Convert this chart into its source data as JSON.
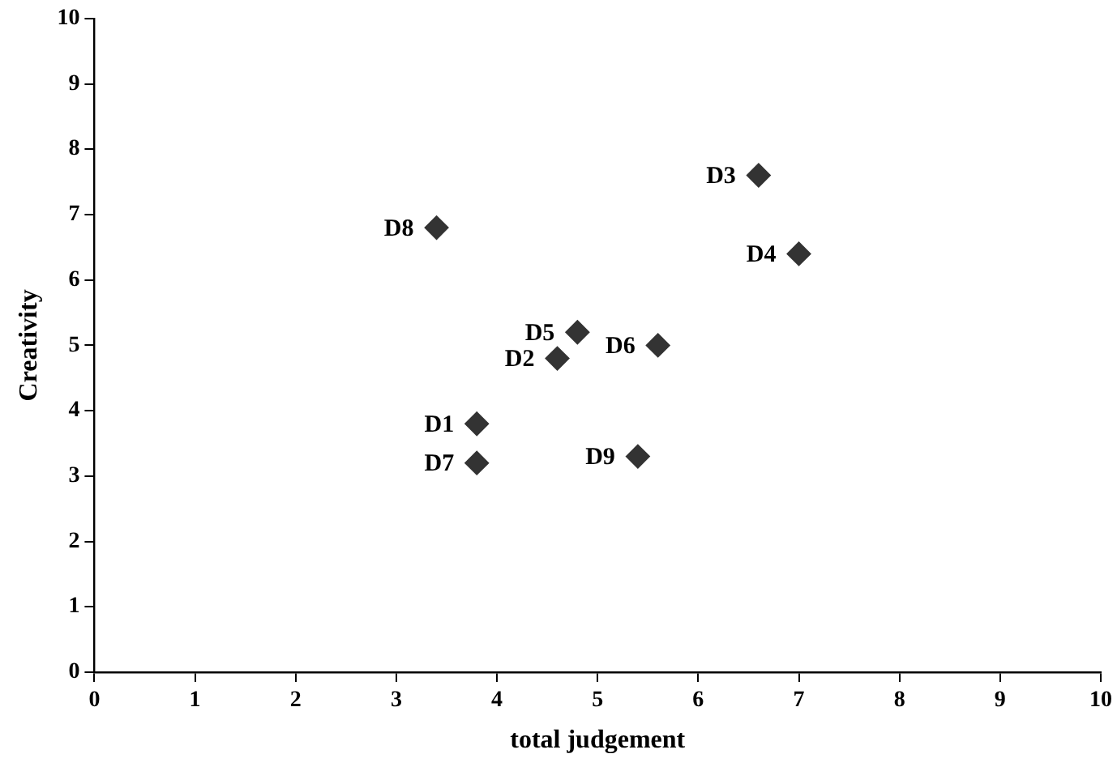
{
  "chart_data": {
    "type": "scatter",
    "xlabel": "total judgement",
    "ylabel": "Creativity",
    "x": [
      3.8,
      4.6,
      6.6,
      7.0,
      4.8,
      5.6,
      3.8,
      3.4,
      5.4
    ],
    "series": [
      {
        "color": "#333333",
        "values": [
          3.8,
          4.8,
          7.6,
          6.4,
          5.2,
          5.0,
          3.2,
          6.8,
          3.3
        ]
      }
    ],
    "annotations": [
      {
        "text": "D1",
        "x": 3.8,
        "y": 3.8
      },
      {
        "text": "D2",
        "x": 4.6,
        "y": 4.8
      },
      {
        "text": "D3",
        "x": 6.6,
        "y": 7.6
      },
      {
        "text": "D4",
        "x": 7.0,
        "y": 6.4
      },
      {
        "text": "D5",
        "x": 4.8,
        "y": 5.2
      },
      {
        "text": "D6",
        "x": 5.6,
        "y": 5.0
      },
      {
        "text": "D7",
        "x": 3.8,
        "y": 3.2
      },
      {
        "text": "D8",
        "x": 3.4,
        "y": 6.8
      },
      {
        "text": "D9",
        "x": 5.4,
        "y": 3.3
      }
    ],
    "xlim": [
      0,
      10
    ],
    "ylim": [
      0,
      10
    ],
    "xticks": [
      0,
      1,
      2,
      3,
      4,
      5,
      6,
      7,
      8,
      9,
      10
    ],
    "yticks": [
      0,
      1,
      2,
      3,
      4,
      5,
      6,
      7,
      8,
      9,
      10
    ],
    "grid": false,
    "legend": false,
    "marker": "diamond"
  }
}
